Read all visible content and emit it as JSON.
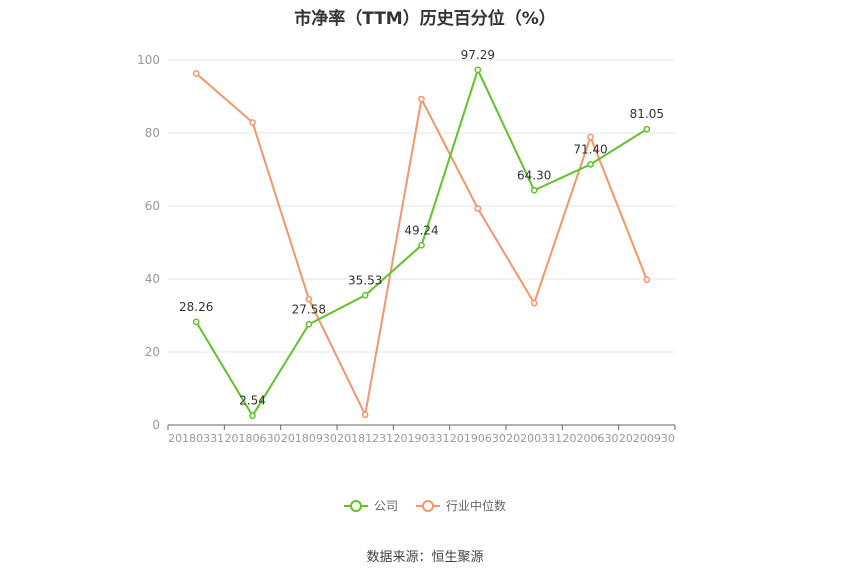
{
  "chart_data": {
    "type": "line",
    "title": "市净率（TTM）历史百分位（%）",
    "categories": [
      "20180331",
      "20180630",
      "20180930",
      "20181231",
      "20190331",
      "20190630",
      "20200331",
      "20200630",
      "20200930"
    ],
    "ylim": [
      0,
      100
    ],
    "yticks": [
      0,
      20,
      40,
      60,
      80,
      100
    ],
    "grid": true,
    "legend_position": "bottom",
    "series": [
      {
        "name": "公司",
        "color": "#5ec427",
        "values": [
          28.26,
          2.54,
          27.58,
          35.53,
          49.24,
          97.29,
          64.3,
          71.4,
          81.05
        ],
        "labels": [
          "28.26",
          "2.54",
          "27.58",
          "35.53",
          "49.24",
          "97.29",
          "64.30",
          "71.40",
          "81.05"
        ]
      },
      {
        "name": "行业中位数",
        "color": "#f5956b",
        "values": [
          96.3,
          82.9,
          34.5,
          2.8,
          89.3,
          59.3,
          33.4,
          78.9,
          39.8
        ]
      }
    ]
  },
  "source_text": "数据来源：恒生聚源"
}
